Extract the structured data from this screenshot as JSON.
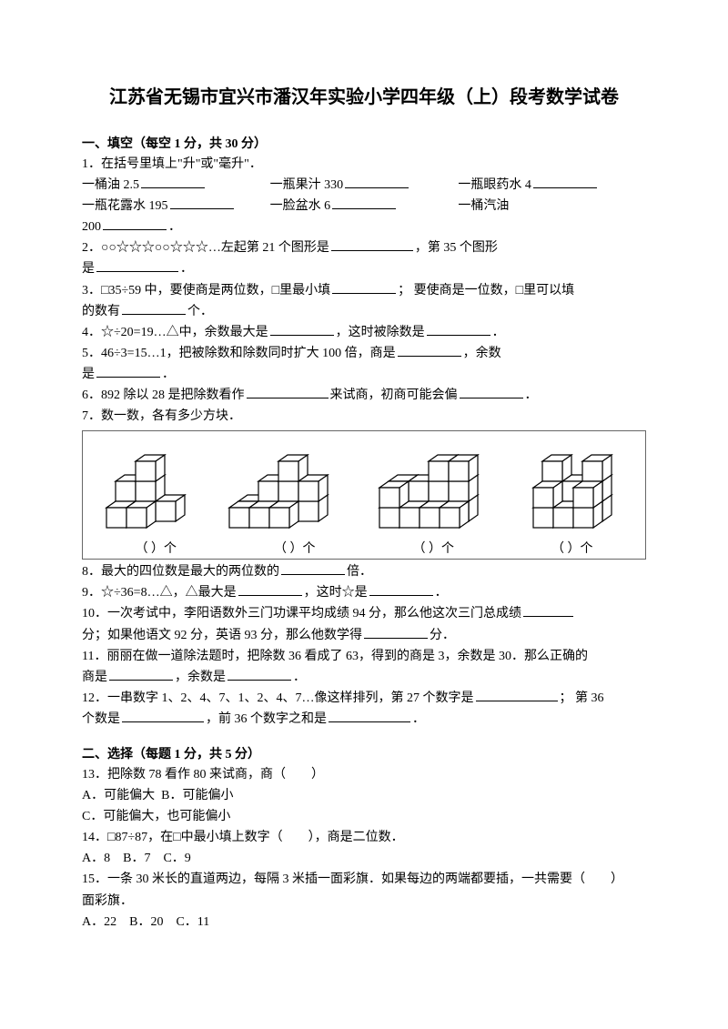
{
  "title": "江苏省无锡市宜兴市潘汉年实验小学四年级（上）段考数学试卷",
  "section1": {
    "head": "一、填空（每空 1 分，共 30 分）",
    "q1": {
      "stem": "1．在括号里填上\"升\"或\"毫升\"．",
      "items": [
        "一桶油 2.5",
        "一瓶果汁 330",
        "一瓶眼药水 4",
        "一瓶花露水 195",
        "一脸盆水 6",
        "一桶汽油"
      ],
      "last": "200",
      "period": "．"
    },
    "q2": {
      "a": "2．○○☆☆☆○○☆☆☆…左起第 21 个图形是",
      "b": "，第 35 个图形",
      "c": "是",
      "d": "．"
    },
    "q3": {
      "a": "3．□35÷59 中，要使商是两位数，□里最小填",
      "b": "； 要使商是一位数，□里可以填",
      "c": "的数有",
      "d": "个．"
    },
    "q4": {
      "a": "4．☆÷20=19…△中，余数最大是",
      "b": "，这时被除数是",
      "c": "．"
    },
    "q5": {
      "a": "5．46÷3=15…1，把被除数和除数同时扩大 100 倍，商是",
      "b": "，余数",
      "c": "是",
      "d": "．"
    },
    "q6": {
      "a": "6．892 除以 28 是把除数看作",
      "b": "来试商，初商可能会偏",
      "c": "．"
    },
    "q7": "7．数一数，各有多少方块．",
    "caption": [
      "（      ）个",
      "（      ）个",
      "（      ）个",
      "（      ）个"
    ],
    "q8": {
      "a": "8．最大的四位数是最大的两位数的",
      "b": "倍．"
    },
    "q9": {
      "a": "9．☆÷36=8…△，△最大是",
      "b": "，这时☆是",
      "c": "．"
    },
    "q10": {
      "a": "10．一次考试中，李阳语数外三门功课平均成绩 94 分，那么他这次三门总成绩",
      "b": "分；如果他语文 92 分，英语 93 分，那么他数学得",
      "c": "分．"
    },
    "q11": {
      "a": "11．丽丽在做一道除法题时，把除数 36 看成了 63，得到的商是 3，余数是 30．那么正确的",
      "b": "商是",
      "c": "，余数是",
      "d": "．"
    },
    "q12": {
      "a": "12．一串数字 1、2、4、7、1、2、4、7…像这样排列，第 27 个数字是",
      "b": "； 第 36",
      "c": "个数是",
      "d": "，前 36 个数字之和是",
      "e": "．"
    }
  },
  "section2": {
    "head": "二、选择（每题 1 分，共 5 分）",
    "q13": {
      "stem": "13．把除数 78 看作 80 来试商，商（　　）",
      "A": "A．可能偏大",
      "B": "B．可能偏小",
      "C": "C．可能偏大，也可能偏小"
    },
    "q14": {
      "stem": "14．□87÷87，在□中最小填上数字（　　），商是二位数．",
      "A": "A．8",
      "B": "B．7",
      "C": "C．9"
    },
    "q15": {
      "stem": "15．一条 30 米长的直道两边，每隔 3 米插一面彩旗．如果每边的两端都要插，一共需要（　　）",
      "tail": "面彩旗．",
      "A": "A．22",
      "B": "B．20",
      "C": "C．11"
    }
  },
  "figure": {
    "stroke": "#000000",
    "fill": "#ffffff",
    "strokeWidth": 1.2
  }
}
